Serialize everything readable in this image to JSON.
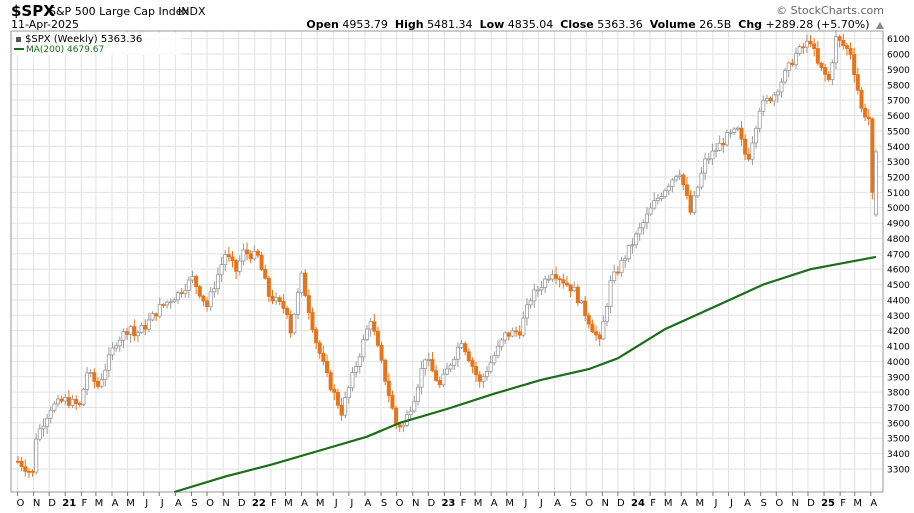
{
  "header": {
    "symbol": "$SPX",
    "name": "S&P 500 Large Cap Index",
    "exchange": "INDX",
    "date": "11-Apr-2025",
    "brand": "© StockCharts.com",
    "open_label": "Open",
    "open": "4953.79",
    "high_label": "High",
    "high": "5481.34",
    "low_label": "Low",
    "low": "4835.04",
    "close_label": "Close",
    "close": "5363.36",
    "volume_label": "Volume",
    "volume": "26.5B",
    "chg_label": "Chg",
    "chg": "+289.28 (+5.70%)"
  },
  "legend": {
    "price": "$SPX (Weekly) 5363.36",
    "ma": "MA(200) 4679.67"
  },
  "colors": {
    "up": "#9a9a9a",
    "down": "#e8741a",
    "ma": "#1a6e1a",
    "grid": "#e2e2e2"
  },
  "chart_data": {
    "type": "candlestick",
    "interval": "weekly",
    "ylim": [
      3150,
      6150
    ],
    "y_ticks": [
      3300,
      3400,
      3500,
      3600,
      3700,
      3800,
      3900,
      4000,
      4100,
      4200,
      4300,
      4400,
      4500,
      4600,
      4700,
      4800,
      4900,
      5000,
      5100,
      5200,
      5300,
      5400,
      5500,
      5600,
      5700,
      5800,
      5900,
      6000,
      6100
    ],
    "x_labels": [
      "O",
      "N",
      "D",
      "21",
      "F",
      "M",
      "A",
      "M",
      "J",
      "J",
      "A",
      "S",
      "O",
      "N",
      "D",
      "22",
      "F",
      "M",
      "A",
      "M",
      "J",
      "J",
      "A",
      "S",
      "O",
      "N",
      "D",
      "23",
      "F",
      "M",
      "A",
      "M",
      "J",
      "J",
      "A",
      "S",
      "O",
      "N",
      "D",
      "24",
      "F",
      "M",
      "A",
      "M",
      "J",
      "J",
      "A",
      "S",
      "O",
      "N",
      "D",
      "25",
      "F",
      "M",
      "A"
    ],
    "x_label_bold": [
      "21",
      "22",
      "23",
      "24",
      "25"
    ],
    "close_points": [
      [
        "2020-10-02",
        3350
      ],
      [
        "2020-10-30",
        3270
      ],
      [
        "2020-11-06",
        3510
      ],
      [
        "2020-12-04",
        3700
      ],
      [
        "2020-12-31",
        3750
      ],
      [
        "2021-01-29",
        3710
      ],
      [
        "2021-02-12",
        3930
      ],
      [
        "2021-03-05",
        3840
      ],
      [
        "2021-04-09",
        4130
      ],
      [
        "2021-05-07",
        4230
      ],
      [
        "2021-05-14",
        4170
      ],
      [
        "2021-06-04",
        4230
      ],
      [
        "2021-07-02",
        4350
      ],
      [
        "2021-08-06",
        4440
      ],
      [
        "2021-09-03",
        4540
      ],
      [
        "2021-10-01",
        4360
      ],
      [
        "2021-11-05",
        4700
      ],
      [
        "2021-11-26",
        4590
      ],
      [
        "2021-12-10",
        4710
      ],
      [
        "2022-01-07",
        4680
      ],
      [
        "2022-01-28",
        4430
      ],
      [
        "2022-03-04",
        4330
      ],
      [
        "2022-03-11",
        4200
      ],
      [
        "2022-04-01",
        4550
      ],
      [
        "2022-04-29",
        4130
      ],
      [
        "2022-05-20",
        3900
      ],
      [
        "2022-06-17",
        3670
      ],
      [
        "2022-07-08",
        3900
      ],
      [
        "2022-08-12",
        4280
      ],
      [
        "2022-09-30",
        3590
      ],
      [
        "2022-10-14",
        3580
      ],
      [
        "2022-11-04",
        3770
      ],
      [
        "2022-11-25",
        4030
      ],
      [
        "2022-12-23",
        3840
      ],
      [
        "2023-02-03",
        4140
      ],
      [
        "2023-03-10",
        3860
      ],
      [
        "2023-04-28",
        4170
      ],
      [
        "2023-05-26",
        4200
      ],
      [
        "2023-06-16",
        4410
      ],
      [
        "2023-07-28",
        4590
      ],
      [
        "2023-09-08",
        4460
      ],
      [
        "2023-10-27",
        4120
      ],
      [
        "2023-11-17",
        4510
      ],
      [
        "2023-12-29",
        4770
      ],
      [
        "2024-02-09",
        5030
      ],
      [
        "2024-03-28",
        5250
      ],
      [
        "2024-04-19",
        4970
      ],
      [
        "2024-05-17",
        5300
      ],
      [
        "2024-06-28",
        5460
      ],
      [
        "2024-07-19",
        5500
      ],
      [
        "2024-08-02",
        5350
      ],
      [
        "2024-08-09",
        5340
      ],
      [
        "2024-08-30",
        5650
      ],
      [
        "2024-09-27",
        5740
      ],
      [
        "2024-11-08",
        6000
      ],
      [
        "2024-12-06",
        6090
      ],
      [
        "2024-12-20",
        5930
      ],
      [
        "2025-01-10",
        5830
      ],
      [
        "2025-01-24",
        6100
      ],
      [
        "2025-02-21",
        6010
      ],
      [
        "2025-03-07",
        5770
      ],
      [
        "2025-03-14",
        5640
      ],
      [
        "2025-03-28",
        5580
      ],
      [
        "2025-04-04",
        5074
      ],
      [
        "2025-04-11",
        5363
      ]
    ],
    "ma_points": [
      [
        "2021-07-30",
        3150
      ],
      [
        "2021-11-05",
        3250
      ],
      [
        "2022-02-04",
        3330
      ],
      [
        "2022-05-06",
        3420
      ],
      [
        "2022-08-05",
        3510
      ],
      [
        "2022-10-07",
        3600
      ],
      [
        "2023-01-06",
        3690
      ],
      [
        "2023-04-07",
        3790
      ],
      [
        "2023-07-07",
        3880
      ],
      [
        "2023-10-06",
        3950
      ],
      [
        "2023-12-01",
        4020
      ],
      [
        "2024-03-01",
        4210
      ],
      [
        "2024-06-07",
        4360
      ],
      [
        "2024-09-06",
        4500
      ],
      [
        "2024-12-06",
        4600
      ],
      [
        "2025-04-11",
        4680
      ]
    ]
  }
}
